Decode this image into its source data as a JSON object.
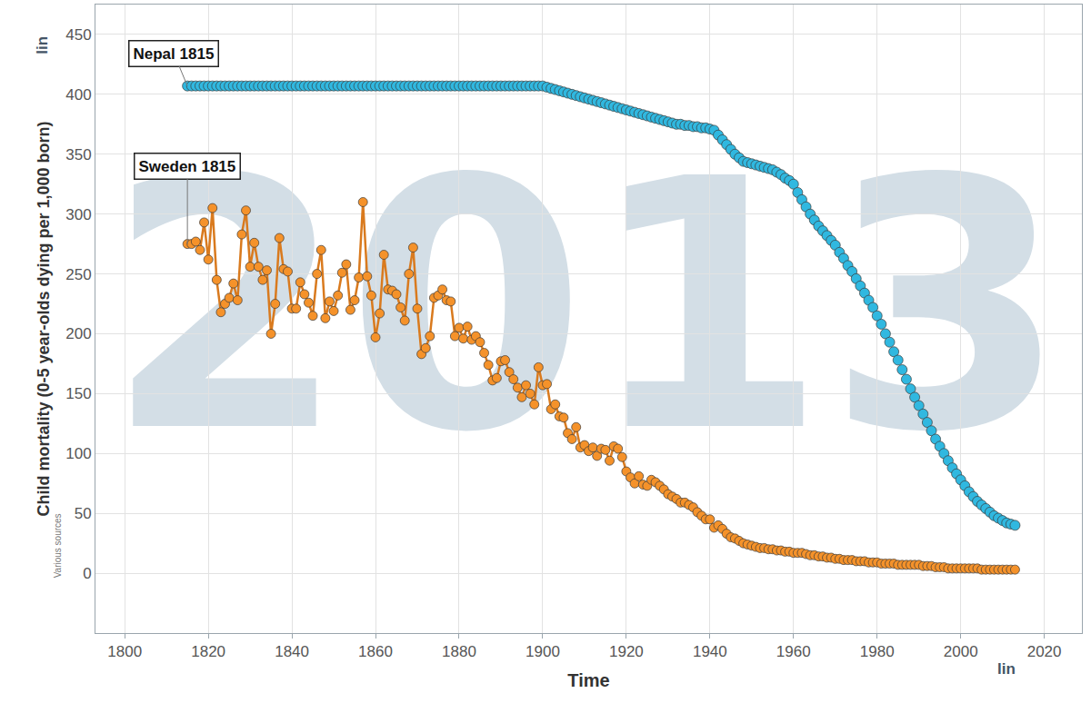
{
  "chart_data": {
    "type": "line",
    "x_label": "Time",
    "y_label": "Child mortality (0-5 year-olds dying per 1,000 born)",
    "watermark": "2013",
    "scale_labels": [
      "lin",
      "lin"
    ],
    "source": "Various sources",
    "grid": true,
    "xlim": [
      1793,
      2029
    ],
    "xticks": [
      1800,
      1820,
      1840,
      1860,
      1880,
      1900,
      1920,
      1940,
      1960,
      1980,
      2000,
      2020
    ],
    "ylim": [
      -50,
      475
    ],
    "yticks": [
      0,
      50,
      100,
      150,
      200,
      250,
      300,
      350,
      400,
      450
    ],
    "annotations": [
      {
        "text": "Nepal 1815",
        "x": 1815,
        "y": 407
      },
      {
        "text": "Sweden 1815",
        "x": 1815,
        "y": 275
      }
    ],
    "x": [
      1815,
      1816,
      1817,
      1818,
      1819,
      1820,
      1821,
      1822,
      1823,
      1824,
      1825,
      1826,
      1827,
      1828,
      1829,
      1830,
      1831,
      1832,
      1833,
      1834,
      1835,
      1836,
      1837,
      1838,
      1839,
      1840,
      1841,
      1842,
      1843,
      1844,
      1845,
      1846,
      1847,
      1848,
      1849,
      1850,
      1851,
      1852,
      1853,
      1854,
      1855,
      1856,
      1857,
      1858,
      1859,
      1860,
      1861,
      1862,
      1863,
      1864,
      1865,
      1866,
      1867,
      1868,
      1869,
      1870,
      1871,
      1872,
      1873,
      1874,
      1875,
      1876,
      1877,
      1878,
      1879,
      1880,
      1881,
      1882,
      1883,
      1884,
      1885,
      1886,
      1887,
      1888,
      1889,
      1890,
      1891,
      1892,
      1893,
      1894,
      1895,
      1896,
      1897,
      1898,
      1899,
      1900,
      1901,
      1902,
      1903,
      1904,
      1905,
      1906,
      1907,
      1908,
      1909,
      1910,
      1911,
      1912,
      1913,
      1914,
      1915,
      1916,
      1917,
      1918,
      1919,
      1920,
      1921,
      1922,
      1923,
      1924,
      1925,
      1926,
      1927,
      1928,
      1929,
      1930,
      1931,
      1932,
      1933,
      1934,
      1935,
      1936,
      1937,
      1938,
      1939,
      1940,
      1941,
      1942,
      1943,
      1944,
      1945,
      1946,
      1947,
      1948,
      1949,
      1950,
      1951,
      1952,
      1953,
      1954,
      1955,
      1956,
      1957,
      1958,
      1959,
      1960,
      1961,
      1962,
      1963,
      1964,
      1965,
      1966,
      1967,
      1968,
      1969,
      1970,
      1971,
      1972,
      1973,
      1974,
      1975,
      1976,
      1977,
      1978,
      1979,
      1980,
      1981,
      1982,
      1983,
      1984,
      1985,
      1986,
      1987,
      1988,
      1989,
      1990,
      1991,
      1992,
      1993,
      1994,
      1995,
      1996,
      1997,
      1998,
      1999,
      2000,
      2001,
      2002,
      2003,
      2004,
      2005,
      2006,
      2007,
      2008,
      2009,
      2010,
      2011,
      2012,
      2013
    ],
    "series": [
      {
        "name": "Nepal",
        "color": "#30b8e0",
        "marker": "circle",
        "line_style": "none",
        "values": [
          407,
          407,
          407,
          407,
          407,
          407,
          407,
          407,
          407,
          407,
          407,
          407,
          407,
          407,
          407,
          407,
          407,
          407,
          407,
          407,
          407,
          407,
          407,
          407,
          407,
          407,
          407,
          407,
          407,
          407,
          407,
          407,
          407,
          407,
          407,
          407,
          407,
          407,
          407,
          407,
          407,
          407,
          407,
          407,
          407,
          407,
          407,
          407,
          407,
          407,
          407,
          407,
          407,
          407,
          407,
          407,
          407,
          407,
          407,
          407,
          407,
          407,
          407,
          407,
          407,
          407,
          407,
          407,
          407,
          407,
          407,
          407,
          407,
          407,
          407,
          407,
          407,
          407,
          407,
          407,
          407,
          407,
          407,
          407,
          407,
          407,
          406,
          405,
          404,
          403,
          402,
          401,
          400,
          399,
          398,
          397,
          396,
          395,
          394,
          393,
          392,
          391,
          390,
          389,
          388,
          387,
          386,
          385,
          384,
          383,
          382,
          381,
          380,
          379,
          378,
          377,
          376,
          375,
          375,
          374,
          374,
          373,
          373,
          372,
          372,
          371,
          370,
          366,
          362,
          358,
          354,
          350,
          347,
          344,
          343,
          342,
          341,
          340,
          339,
          338,
          337,
          335,
          333,
          330,
          328,
          325,
          318,
          312,
          306,
          300,
          295,
          290,
          286,
          282,
          278,
          274,
          268,
          263,
          257,
          252,
          246,
          240,
          234,
          228,
          222,
          215,
          208,
          200,
          193,
          185,
          178,
          170,
          162,
          154,
          147,
          140,
          133,
          126,
          119,
          112,
          106,
          100,
          94,
          88,
          83,
          78,
          73,
          68,
          64,
          60,
          57,
          54,
          51,
          48,
          46,
          44,
          42,
          41,
          40
        ]
      },
      {
        "name": "Sweden",
        "color": "#f5922a",
        "marker": "circle",
        "line_style": "solid",
        "values": [
          275,
          275,
          277,
          270,
          293,
          262,
          305,
          245,
          218,
          225,
          230,
          242,
          228,
          283,
          303,
          256,
          276,
          256,
          245,
          253,
          200,
          225,
          280,
          254,
          252,
          221,
          221,
          243,
          233,
          226,
          215,
          250,
          270,
          213,
          227,
          219,
          232,
          251,
          258,
          220,
          228,
          247,
          310,
          248,
          232,
          197,
          217,
          266,
          237,
          236,
          233,
          222,
          211,
          250,
          272,
          221,
          183,
          188,
          198,
          230,
          232,
          237,
          228,
          227,
          198,
          205,
          196,
          206,
          195,
          198,
          193,
          184,
          174,
          161,
          163,
          177,
          178,
          168,
          162,
          155,
          147,
          157,
          150,
          141,
          172,
          157,
          158,
          137,
          141,
          131,
          130,
          117,
          112,
          122,
          105,
          107,
          102,
          105,
          98,
          104,
          103,
          94,
          106,
          104,
          97,
          85,
          80,
          75,
          81,
          74,
          73,
          78,
          76,
          73,
          70,
          66,
          64,
          62,
          59,
          59,
          57,
          55,
          51,
          48,
          45,
          45,
          38,
          40,
          37,
          33,
          30,
          29,
          27,
          25,
          24,
          23,
          22,
          21,
          21,
          20,
          20,
          19,
          19,
          18,
          18,
          17,
          17,
          17,
          16,
          15,
          15,
          14,
          14,
          13,
          13,
          12,
          12,
          11,
          11,
          11,
          10,
          10,
          10,
          9,
          9,
          9,
          8,
          8,
          8,
          8,
          7,
          7,
          7,
          7,
          7,
          7,
          6,
          6,
          6,
          5,
          5,
          5,
          4,
          4,
          4,
          4,
          4,
          4,
          4,
          4,
          3,
          3,
          3,
          3,
          3,
          3,
          3,
          3,
          3
        ]
      }
    ]
  }
}
